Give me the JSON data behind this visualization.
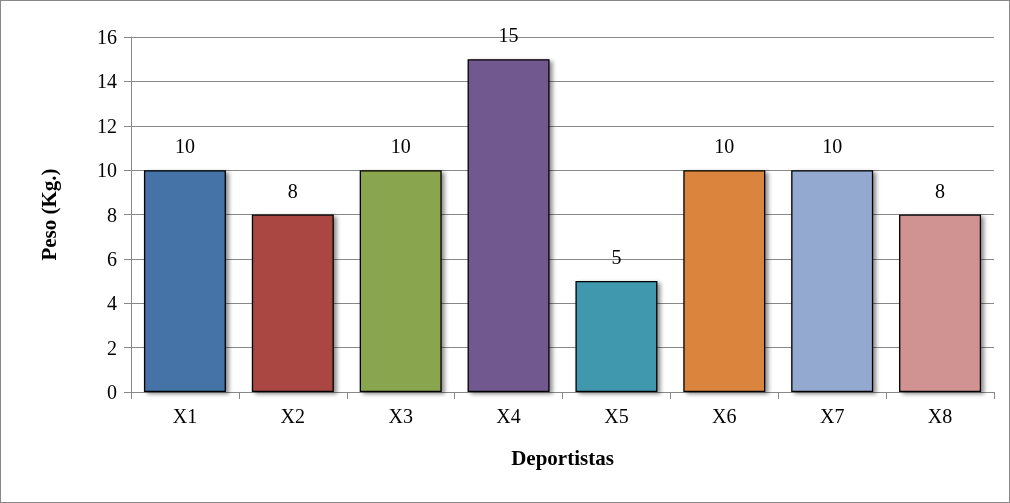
{
  "chart_data": {
    "type": "bar",
    "xlabel": "Deportistas",
    "ylabel": "Peso (Kg.)",
    "categories": [
      "X1",
      "X2",
      "X3",
      "X4",
      "X5",
      "X6",
      "X7",
      "X8"
    ],
    "values": [
      10,
      8,
      10,
      15,
      5,
      10,
      10,
      8
    ],
    "colors": [
      "#4572a7",
      "#aa4643",
      "#89a54e",
      "#71588f",
      "#4198af",
      "#db843d",
      "#93a9cf",
      "#d19392"
    ],
    "ylim": [
      0,
      16
    ],
    "yticks": [
      0,
      2,
      4,
      6,
      8,
      10,
      12,
      14,
      16
    ],
    "grid": "y",
    "data_labels": true
  }
}
